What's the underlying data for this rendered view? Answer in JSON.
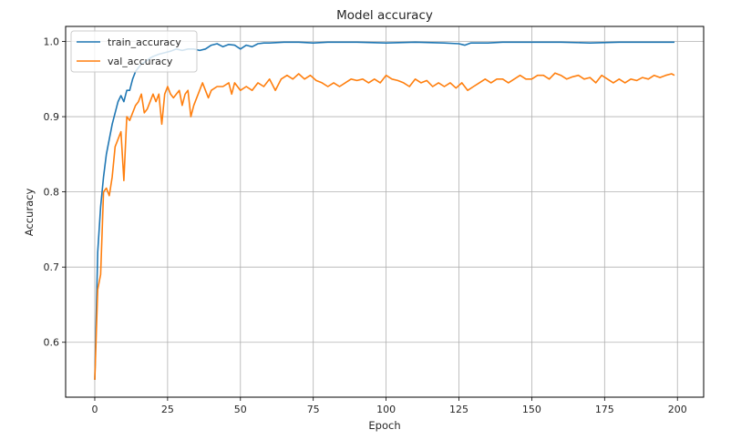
{
  "chart_data": {
    "type": "line",
    "title": "Model accuracy",
    "xlabel": "Epoch",
    "ylabel": "Accuracy",
    "xlim": [
      -10,
      209
    ],
    "ylim": [
      0.527,
      1.02
    ],
    "xticks": [
      0,
      25,
      50,
      75,
      100,
      125,
      150,
      175,
      200
    ],
    "yticks": [
      0.6,
      0.7,
      0.8,
      0.9,
      1.0
    ],
    "xtick_labels": [
      "0",
      "25",
      "50",
      "75",
      "100",
      "125",
      "150",
      "175",
      "200"
    ],
    "ytick_labels": [
      "0.6",
      "0.7",
      "0.8",
      "0.9",
      "1.0"
    ],
    "grid": true,
    "legend_position": "top-left",
    "series": [
      {
        "name": "train_accuracy",
        "color": "#1f77b4",
        "points": [
          [
            0,
            0.55
          ],
          [
            1,
            0.72
          ],
          [
            2,
            0.78
          ],
          [
            3,
            0.82
          ],
          [
            4,
            0.85
          ],
          [
            5,
            0.87
          ],
          [
            6,
            0.89
          ],
          [
            7,
            0.905
          ],
          [
            8,
            0.92
          ],
          [
            9,
            0.928
          ],
          [
            10,
            0.92
          ],
          [
            11,
            0.935
          ],
          [
            12,
            0.935
          ],
          [
            13,
            0.95
          ],
          [
            14,
            0.96
          ],
          [
            15,
            0.965
          ],
          [
            16,
            0.97
          ],
          [
            17,
            0.972
          ],
          [
            18,
            0.975
          ],
          [
            19,
            0.978
          ],
          [
            20,
            0.98
          ],
          [
            22,
            0.983
          ],
          [
            24,
            0.985
          ],
          [
            26,
            0.987
          ],
          [
            28,
            0.99
          ],
          [
            30,
            0.988
          ],
          [
            32,
            0.99
          ],
          [
            34,
            0.99
          ],
          [
            36,
            0.988
          ],
          [
            38,
            0.99
          ],
          [
            40,
            0.995
          ],
          [
            42,
            0.997
          ],
          [
            44,
            0.993
          ],
          [
            46,
            0.996
          ],
          [
            48,
            0.995
          ],
          [
            50,
            0.99
          ],
          [
            52,
            0.995
          ],
          [
            54,
            0.993
          ],
          [
            56,
            0.997
          ],
          [
            58,
            0.998
          ],
          [
            60,
            0.998
          ],
          [
            65,
            0.999
          ],
          [
            70,
            0.999
          ],
          [
            75,
            0.998
          ],
          [
            80,
            0.999
          ],
          [
            90,
            0.999
          ],
          [
            100,
            0.998
          ],
          [
            110,
            0.999
          ],
          [
            120,
            0.998
          ],
          [
            125,
            0.997
          ],
          [
            127,
            0.995
          ],
          [
            129,
            0.998
          ],
          [
            135,
            0.998
          ],
          [
            140,
            0.999
          ],
          [
            150,
            0.999
          ],
          [
            160,
            0.999
          ],
          [
            170,
            0.998
          ],
          [
            180,
            0.999
          ],
          [
            190,
            0.999
          ],
          [
            199,
            0.999
          ]
        ]
      },
      {
        "name": "val_accuracy",
        "color": "#ff7f0e",
        "points": [
          [
            0,
            0.55
          ],
          [
            1,
            0.67
          ],
          [
            2,
            0.69
          ],
          [
            3,
            0.8
          ],
          [
            4,
            0.805
          ],
          [
            5,
            0.795
          ],
          [
            6,
            0.82
          ],
          [
            7,
            0.86
          ],
          [
            8,
            0.87
          ],
          [
            9,
            0.88
          ],
          [
            10,
            0.815
          ],
          [
            11,
            0.9
          ],
          [
            12,
            0.895
          ],
          [
            13,
            0.905
          ],
          [
            14,
            0.915
          ],
          [
            15,
            0.92
          ],
          [
            16,
            0.93
          ],
          [
            17,
            0.905
          ],
          [
            18,
            0.91
          ],
          [
            19,
            0.92
          ],
          [
            20,
            0.93
          ],
          [
            21,
            0.92
          ],
          [
            22,
            0.93
          ],
          [
            23,
            0.89
          ],
          [
            24,
            0.93
          ],
          [
            25,
            0.94
          ],
          [
            26,
            0.93
          ],
          [
            27,
            0.925
          ],
          [
            28,
            0.93
          ],
          [
            29,
            0.935
          ],
          [
            30,
            0.915
          ],
          [
            31,
            0.93
          ],
          [
            32,
            0.935
          ],
          [
            33,
            0.9
          ],
          [
            34,
            0.915
          ],
          [
            35,
            0.925
          ],
          [
            36,
            0.935
          ],
          [
            37,
            0.945
          ],
          [
            38,
            0.935
          ],
          [
            39,
            0.925
          ],
          [
            40,
            0.935
          ],
          [
            42,
            0.94
          ],
          [
            44,
            0.94
          ],
          [
            46,
            0.945
          ],
          [
            47,
            0.93
          ],
          [
            48,
            0.945
          ],
          [
            50,
            0.935
          ],
          [
            52,
            0.94
          ],
          [
            54,
            0.935
          ],
          [
            56,
            0.945
          ],
          [
            58,
            0.94
          ],
          [
            60,
            0.95
          ],
          [
            62,
            0.935
          ],
          [
            64,
            0.95
          ],
          [
            66,
            0.955
          ],
          [
            68,
            0.95
          ],
          [
            70,
            0.957
          ],
          [
            72,
            0.95
          ],
          [
            74,
            0.955
          ],
          [
            76,
            0.948
          ],
          [
            78,
            0.945
          ],
          [
            80,
            0.94
          ],
          [
            82,
            0.945
          ],
          [
            84,
            0.94
          ],
          [
            86,
            0.945
          ],
          [
            88,
            0.95
          ],
          [
            90,
            0.948
          ],
          [
            92,
            0.95
          ],
          [
            94,
            0.945
          ],
          [
            96,
            0.95
          ],
          [
            98,
            0.945
          ],
          [
            100,
            0.955
          ],
          [
            102,
            0.95
          ],
          [
            104,
            0.948
          ],
          [
            106,
            0.945
          ],
          [
            108,
            0.94
          ],
          [
            110,
            0.95
          ],
          [
            112,
            0.945
          ],
          [
            114,
            0.948
          ],
          [
            116,
            0.94
          ],
          [
            118,
            0.945
          ],
          [
            120,
            0.94
          ],
          [
            122,
            0.945
          ],
          [
            124,
            0.938
          ],
          [
            126,
            0.945
          ],
          [
            128,
            0.935
          ],
          [
            130,
            0.94
          ],
          [
            132,
            0.945
          ],
          [
            134,
            0.95
          ],
          [
            136,
            0.945
          ],
          [
            138,
            0.95
          ],
          [
            140,
            0.95
          ],
          [
            142,
            0.945
          ],
          [
            144,
            0.95
          ],
          [
            146,
            0.955
          ],
          [
            148,
            0.95
          ],
          [
            150,
            0.95
          ],
          [
            152,
            0.955
          ],
          [
            154,
            0.955
          ],
          [
            156,
            0.95
          ],
          [
            158,
            0.958
          ],
          [
            160,
            0.955
          ],
          [
            162,
            0.95
          ],
          [
            164,
            0.953
          ],
          [
            166,
            0.955
          ],
          [
            168,
            0.95
          ],
          [
            170,
            0.952
          ],
          [
            172,
            0.945
          ],
          [
            174,
            0.955
          ],
          [
            176,
            0.95
          ],
          [
            178,
            0.945
          ],
          [
            180,
            0.95
          ],
          [
            182,
            0.945
          ],
          [
            184,
            0.95
          ],
          [
            186,
            0.948
          ],
          [
            188,
            0.952
          ],
          [
            190,
            0.95
          ],
          [
            192,
            0.955
          ],
          [
            194,
            0.952
          ],
          [
            196,
            0.955
          ],
          [
            198,
            0.957
          ],
          [
            199,
            0.955
          ]
        ]
      }
    ]
  }
}
